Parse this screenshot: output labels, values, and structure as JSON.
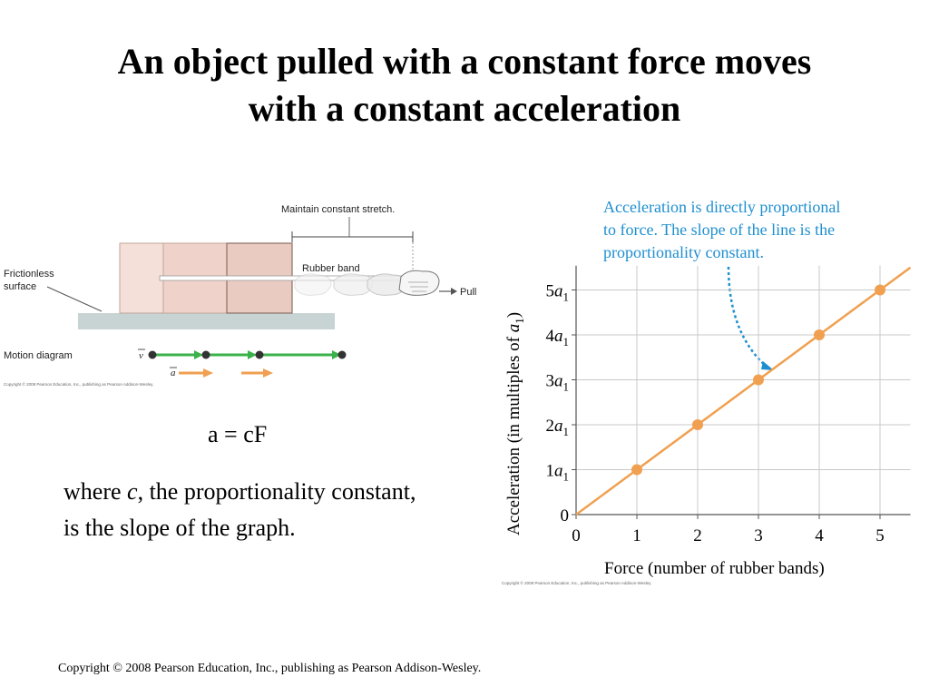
{
  "slide": {
    "title_line1": "An object pulled with a constant force moves",
    "title_line2": "with a constant acceleration",
    "formula": "a = cF",
    "body_prefix": "where ",
    "body_var": "c",
    "body_suffix": ", the proportionality constant, is the slope of the graph.",
    "footer": "Copyright © 2008 Pearson Education, Inc.,  publishing as Pearson Addison-Wesley."
  },
  "left_figure": {
    "maintain_label": "Maintain constant stretch.",
    "rubber_band_label": "Rubber band",
    "pull_label": "Pull",
    "frictionless_line1": "Frictionless",
    "frictionless_line2": "surface",
    "motion_label": "Motion diagram",
    "v_symbol": "v",
    "a_symbol": "a",
    "copyright_small": "Copyright © 2008 Pearson Education, Inc., publishing as Pearson Addison-Wesley."
  },
  "right_figure": {
    "annotation_line1": "Acceleration is directly proportional",
    "annotation_line2": "to force. The slope of the line is the",
    "annotation_line3": "proportionality constant.",
    "copyright_small": "Copyright © 2008 Pearson Education, Inc., publishing as Pearson Addison-Wesley."
  },
  "colors": {
    "orange": "#f0a050",
    "blue": "#1e8fcf",
    "green": "#3ab24a",
    "grid": "#c8c8c8",
    "block_fill": "#f1d8d0",
    "block_edge": "#b89a90",
    "surface": "#c8d3d3"
  },
  "chart_data": {
    "type": "scatter",
    "x": [
      1,
      2,
      3,
      4,
      5
    ],
    "y": [
      1,
      2,
      3,
      4,
      5
    ],
    "trendline": {
      "from": [
        0,
        0
      ],
      "to": [
        5.5,
        5.5
      ]
    },
    "xlabel": "Force (number of rubber bands)",
    "ylabel_prefix": "Acceleration (in multiples of ",
    "ylabel_var": "a",
    "ylabel_sub": "1",
    "ylabel_suffix": ")",
    "xticks": [
      "0",
      "1",
      "2",
      "3",
      "4",
      "5"
    ],
    "yticks": [
      {
        "coef": "",
        "var": "",
        "sub": "",
        "plain": "0"
      },
      {
        "coef": "1",
        "var": "a",
        "sub": "1"
      },
      {
        "coef": "2",
        "var": "a",
        "sub": "1"
      },
      {
        "coef": "3",
        "var": "a",
        "sub": "1"
      },
      {
        "coef": "4",
        "var": "a",
        "sub": "1"
      },
      {
        "coef": "5",
        "var": "a",
        "sub": "1"
      }
    ],
    "xlim": [
      0,
      5.5
    ],
    "ylim": [
      0,
      5.5
    ],
    "grid": true
  }
}
